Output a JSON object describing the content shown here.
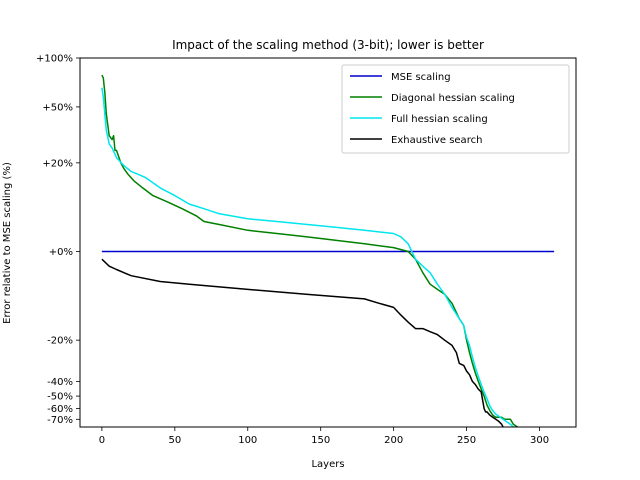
{
  "chart_data": {
    "type": "line",
    "title": "Impact of the scaling method (3-bit); lower is better",
    "xlabel": "Layers",
    "ylabel": "Error relative to MSE scaling (%)",
    "y_scale": "symlog",
    "xlim": [
      -15,
      325
    ],
    "ylim": [
      -78,
      100
    ],
    "x_ticks": [
      0,
      50,
      100,
      150,
      200,
      250,
      300
    ],
    "x_tick_labels": [
      "0",
      "50",
      "100",
      "150",
      "200",
      "250",
      "300"
    ],
    "y_ticks": [
      100,
      50,
      20,
      0,
      -20,
      -40,
      -50,
      -60,
      -70
    ],
    "y_tick_labels": [
      "+100%",
      "+50%",
      "+20%",
      "+0%",
      "-20%",
      "-40%",
      "-50%",
      "-60%",
      "-70%"
    ],
    "legend": {
      "position": "top-right"
    },
    "series": [
      {
        "name": "MSE scaling",
        "color": "#0000cc",
        "x": [
          0,
          310
        ],
        "y": [
          0,
          0
        ]
      },
      {
        "name": "Diagonal hessian scaling",
        "color": "#008000",
        "x": [
          0,
          1,
          2,
          3,
          5,
          7,
          8,
          9,
          10,
          13,
          15,
          18,
          22,
          28,
          35,
          45,
          55,
          65,
          70,
          80,
          100,
          120,
          140,
          160,
          180,
          200,
          210,
          215,
          220,
          225,
          230,
          235,
          240,
          245,
          248,
          250,
          252,
          254,
          256,
          258,
          260,
          262,
          264,
          266,
          268,
          270,
          272,
          274,
          276,
          278,
          280,
          282,
          284,
          285
        ],
        "y": [
          79,
          76,
          62,
          45,
          32,
          30,
          32,
          25,
          25,
          20,
          18,
          16,
          14,
          12,
          10,
          8.5,
          7,
          5.5,
          4.5,
          4,
          3,
          2.5,
          2,
          1.5,
          1,
          0.5,
          0,
          -1,
          -3,
          -5,
          -6,
          -7,
          -9,
          -13,
          -15,
          -20,
          -25,
          -30,
          -35,
          -40,
          -45,
          -50,
          -57,
          -62,
          -66,
          -68,
          -68,
          -68,
          -70,
          -70,
          -70,
          -75,
          -77,
          -78
        ]
      },
      {
        "name": "Full hessian scaling",
        "color": "#00e5ee",
        "x": [
          0,
          1,
          2,
          3,
          5,
          7,
          10,
          15,
          20,
          25,
          30,
          40,
          50,
          60,
          70,
          80,
          100,
          120,
          140,
          160,
          180,
          200,
          205,
          210,
          215,
          220,
          225,
          230,
          235,
          240,
          245,
          248,
          250,
          252,
          254,
          256,
          258,
          260,
          262,
          264,
          266,
          268,
          270,
          272,
          274,
          276,
          278,
          280,
          282
        ],
        "y": [
          66,
          58,
          45,
          35,
          28,
          26,
          22,
          19,
          17,
          16,
          15,
          12,
          10,
          8,
          7,
          6,
          5,
          4.5,
          4,
          3.5,
          3,
          2.5,
          2,
          1,
          -1,
          -2,
          -3,
          -5,
          -7,
          -10,
          -13,
          -15,
          -19,
          -22,
          -27,
          -32,
          -37,
          -42,
          -47,
          -52,
          -58,
          -62,
          -65,
          -67,
          -69,
          -71,
          -73,
          -75,
          -78
        ]
      },
      {
        "name": "Exhaustive search",
        "color": "#000000",
        "x": [
          0,
          5,
          10,
          20,
          40,
          60,
          100,
          140,
          180,
          190,
          200,
          205,
          210,
          215,
          220,
          225,
          230,
          235,
          240,
          243,
          245,
          248,
          250,
          252,
          254,
          256,
          258,
          260,
          262,
          263,
          264,
          266,
          268,
          270,
          272,
          274,
          275
        ],
        "y": [
          -1,
          -2,
          -2.5,
          -3.5,
          -4.5,
          -5,
          -6,
          -7,
          -8,
          -9,
          -10,
          -12,
          -14,
          -16,
          -16,
          -17,
          -18,
          -20,
          -22,
          -25,
          -30,
          -31,
          -34,
          -36,
          -40,
          -42,
          -45,
          -47,
          -60,
          -63,
          -63,
          -66,
          -68,
          -70,
          -72,
          -75,
          -78
        ]
      }
    ]
  }
}
